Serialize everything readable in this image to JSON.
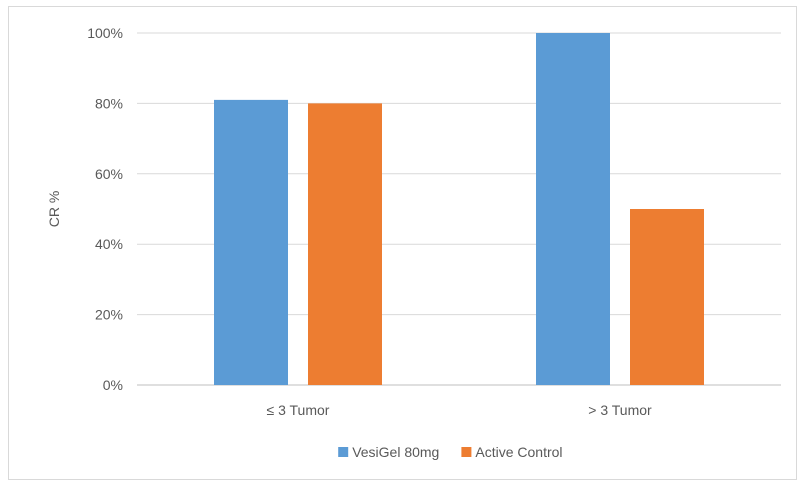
{
  "chart_data": {
    "type": "bar",
    "categories": [
      "≤ 3 Tumor",
      "> 3 Tumor"
    ],
    "series": [
      {
        "name": "VesiGel 80mg",
        "color": "#5b9bd5",
        "values": [
          81,
          100
        ]
      },
      {
        "name": "Active Control",
        "color": "#ed7d31",
        "values": [
          80,
          50
        ]
      }
    ],
    "ylabel": "CR %",
    "xlabel": "",
    "title": "",
    "ylim": [
      0,
      100
    ],
    "yticks": [
      "0%",
      "20%",
      "40%",
      "60%",
      "80%",
      "100%"
    ],
    "grid": true,
    "legend_position": "bottom"
  }
}
